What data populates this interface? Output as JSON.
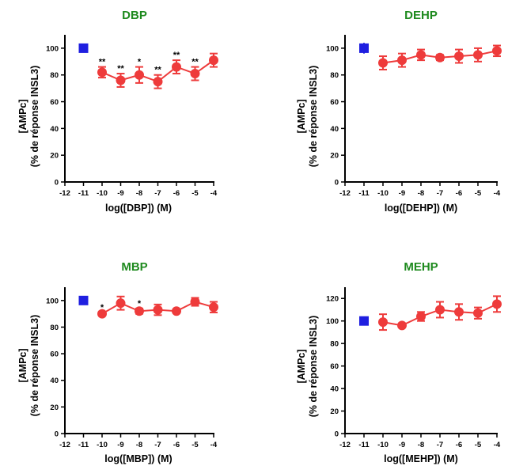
{
  "chart_data": [
    {
      "type": "line",
      "title": "DBP",
      "xlabel": "log([DBP]) (M)",
      "ylabel": [
        "[AMPc]",
        "(% de réponse INSL3)"
      ],
      "xlim": [
        -12,
        -4
      ],
      "ylim": [
        0,
        110
      ],
      "xticks": [
        -12,
        -11,
        -10,
        -9,
        -8,
        -7,
        -6,
        -5,
        -4
      ],
      "yticks": [
        0,
        20,
        40,
        60,
        80,
        100
      ],
      "control": {
        "x": -11,
        "y": 100,
        "err": 3,
        "color": "#1f1fe0",
        "marker": "square"
      },
      "series": [
        {
          "color": "#ee3b3b",
          "marker": "circle",
          "x": [
            -10,
            -9,
            -8,
            -7,
            -6,
            -5,
            -4
          ],
          "y": [
            82,
            76,
            80,
            75,
            86,
            81,
            91
          ],
          "err": [
            4,
            5,
            6,
            5,
            5,
            5,
            5
          ]
        }
      ],
      "significance": [
        {
          "x": -10,
          "text": "**"
        },
        {
          "x": -9,
          "text": "**"
        },
        {
          "x": -8,
          "text": "*"
        },
        {
          "x": -7,
          "text": "**"
        },
        {
          "x": -6,
          "text": "**"
        },
        {
          "x": -5,
          "text": "**"
        }
      ]
    },
    {
      "type": "line",
      "title": "DEHP",
      "xlabel": "log([DEHP]) (M)",
      "ylabel": [
        "[AMPc]",
        "(% de réponse INSL3)"
      ],
      "xlim": [
        -12,
        -4
      ],
      "ylim": [
        0,
        110
      ],
      "xticks": [
        -12,
        -11,
        -10,
        -9,
        -8,
        -7,
        -6,
        -5,
        -4
      ],
      "yticks": [
        0,
        20,
        40,
        60,
        80,
        100
      ],
      "control": {
        "x": -11,
        "y": 100,
        "err": 4,
        "color": "#1f1fe0",
        "marker": "square"
      },
      "series": [
        {
          "color": "#ee3b3b",
          "marker": "circle",
          "x": [
            -10,
            -9,
            -8,
            -7,
            -6,
            -5,
            -4
          ],
          "y": [
            89,
            91,
            95,
            93,
            94,
            95,
            98
          ],
          "err": [
            5,
            5,
            4,
            2,
            5,
            5,
            4
          ]
        }
      ],
      "significance": []
    },
    {
      "type": "line",
      "title": "MBP",
      "xlabel": "log([MBP]) (M)",
      "ylabel": [
        "[AMPc]",
        "(% de réponse INSL3)"
      ],
      "xlim": [
        -12,
        -4
      ],
      "ylim": [
        0,
        110
      ],
      "xticks": [
        -12,
        -11,
        -10,
        -9,
        -8,
        -7,
        -6,
        -5,
        -4
      ],
      "yticks": [
        0,
        20,
        40,
        60,
        80,
        100
      ],
      "control": {
        "x": -11,
        "y": 100,
        "err": 3,
        "color": "#1f1fe0",
        "marker": "square"
      },
      "series": [
        {
          "color": "#ee3b3b",
          "marker": "circle",
          "x": [
            -10,
            -9,
            -8,
            -7,
            -6,
            -5,
            -4
          ],
          "y": [
            90,
            98,
            92,
            93,
            92,
            99,
            95
          ],
          "err": [
            1,
            5,
            2,
            4,
            1,
            3,
            4
          ]
        }
      ],
      "significance": [
        {
          "x": -10,
          "text": "*"
        },
        {
          "x": -8,
          "text": "*"
        }
      ]
    },
    {
      "type": "line",
      "title": "MEHP",
      "xlabel": "log([MEHP]) (M)",
      "ylabel": [
        "[AMPc]",
        "(% de réponse INSL3)"
      ],
      "xlim": [
        -12,
        -4
      ],
      "ylim": [
        0,
        130
      ],
      "xticks": [
        -12,
        -11,
        -10,
        -9,
        -8,
        -7,
        -6,
        -5,
        -4
      ],
      "yticks": [
        0,
        20,
        40,
        60,
        80,
        100,
        120
      ],
      "control": {
        "x": -11,
        "y": 100,
        "err": 3,
        "color": "#1f1fe0",
        "marker": "square"
      },
      "series": [
        {
          "color": "#ee3b3b",
          "marker": "circle",
          "x": [
            -10,
            -9,
            -8,
            -7,
            -6,
            -5,
            -4
          ],
          "y": [
            99,
            96,
            104,
            110,
            108,
            107,
            115
          ],
          "err": [
            7,
            1,
            4,
            7,
            7,
            5,
            7
          ]
        }
      ],
      "significance": []
    }
  ]
}
